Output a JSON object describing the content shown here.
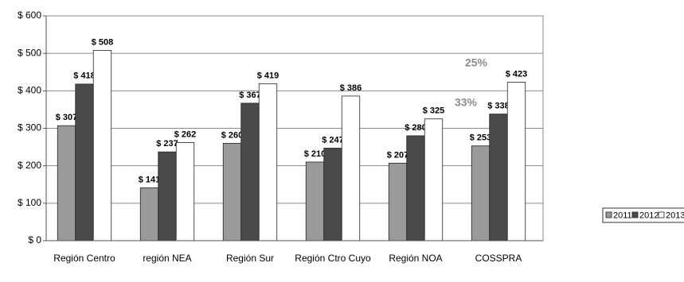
{
  "chart_data": {
    "type": "bar",
    "categories": [
      "Región Centro",
      "región NEA",
      "Región Sur",
      "Región Ctro Cuyo",
      "Región NOA",
      "COSSPRA"
    ],
    "series": [
      {
        "name": "2011",
        "color": "#9a9a9a",
        "values": [
          307,
          141,
          260,
          210,
          207,
          253
        ],
        "value_labels": [
          "$ 307",
          "$ 141",
          "$ 260",
          "$ 210",
          "$ 207",
          "$ 253"
        ]
      },
      {
        "name": "2012",
        "color": "#4a4a4a",
        "values": [
          418,
          237,
          367,
          247,
          280,
          338
        ],
        "value_labels": [
          "$ 418",
          "$ 237",
          "$ 367",
          "$ 247",
          "$ 280",
          "$ 338"
        ]
      },
      {
        "name": "2013",
        "color": "#ffffff",
        "values": [
          508,
          262,
          419,
          386,
          325,
          423
        ],
        "value_labels": [
          "$ 508",
          "$ 262",
          "$ 419",
          "$ 386",
          "$ 325",
          "$ 423"
        ]
      }
    ],
    "ylim": [
      0,
      600
    ],
    "yticks": [
      {
        "value": 0,
        "label": "$ 0"
      },
      {
        "value": 100,
        "label": "$ 100"
      },
      {
        "value": 200,
        "label": "$ 200"
      },
      {
        "value": 300,
        "label": "$ 300"
      },
      {
        "value": 400,
        "label": "$ 400"
      },
      {
        "value": 500,
        "label": "$ 500"
      },
      {
        "value": 600,
        "label": "$ 600"
      }
    ],
    "grid": true,
    "legend": "right",
    "annotations": [
      "25%",
      "33%"
    ]
  }
}
